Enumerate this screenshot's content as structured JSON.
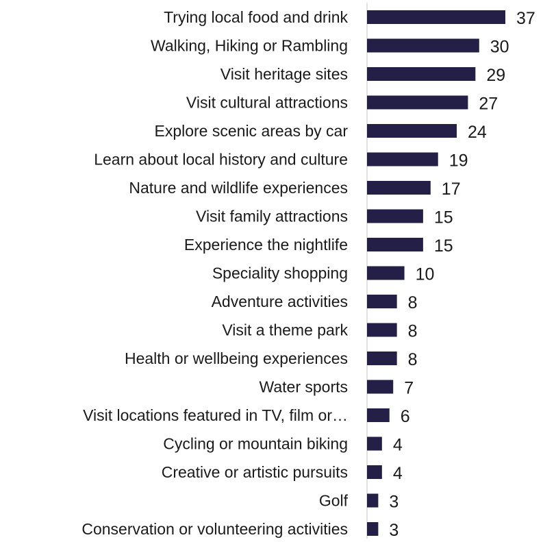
{
  "chart_data": {
    "type": "bar",
    "orientation": "horizontal",
    "categories": [
      "Trying local food and drink",
      "Walking, Hiking or Rambling",
      "Visit heritage sites",
      "Visit cultural attractions",
      "Explore scenic areas by car",
      "Learn about local history and culture",
      "Nature and wildlife experiences",
      "Visit family attractions",
      "Experience the nightlife",
      "Speciality shopping",
      "Adventure activities",
      "Visit a theme park",
      "Health or wellbeing experiences",
      "Water sports",
      "Visit locations featured in TV, film or…",
      "Cycling or mountain biking",
      "Creative or artistic pursuits",
      "Golf",
      "Conservation or volunteering activities"
    ],
    "values": [
      37,
      30,
      29,
      27,
      24,
      19,
      17,
      15,
      15,
      10,
      8,
      8,
      8,
      7,
      6,
      4,
      4,
      3,
      3
    ],
    "data_labels": [
      "37",
      "30",
      "29",
      "27",
      "24",
      "19",
      "17",
      "15",
      "15",
      "10",
      "8",
      "8",
      "8",
      "7",
      "6",
      "4",
      "4",
      "3",
      "3"
    ],
    "bar_color": "#231f46",
    "axis_color": "#d9d9d9",
    "text_color": "#1a1a1a",
    "xlim": [
      0,
      37
    ],
    "grid": false,
    "legend": "none"
  }
}
